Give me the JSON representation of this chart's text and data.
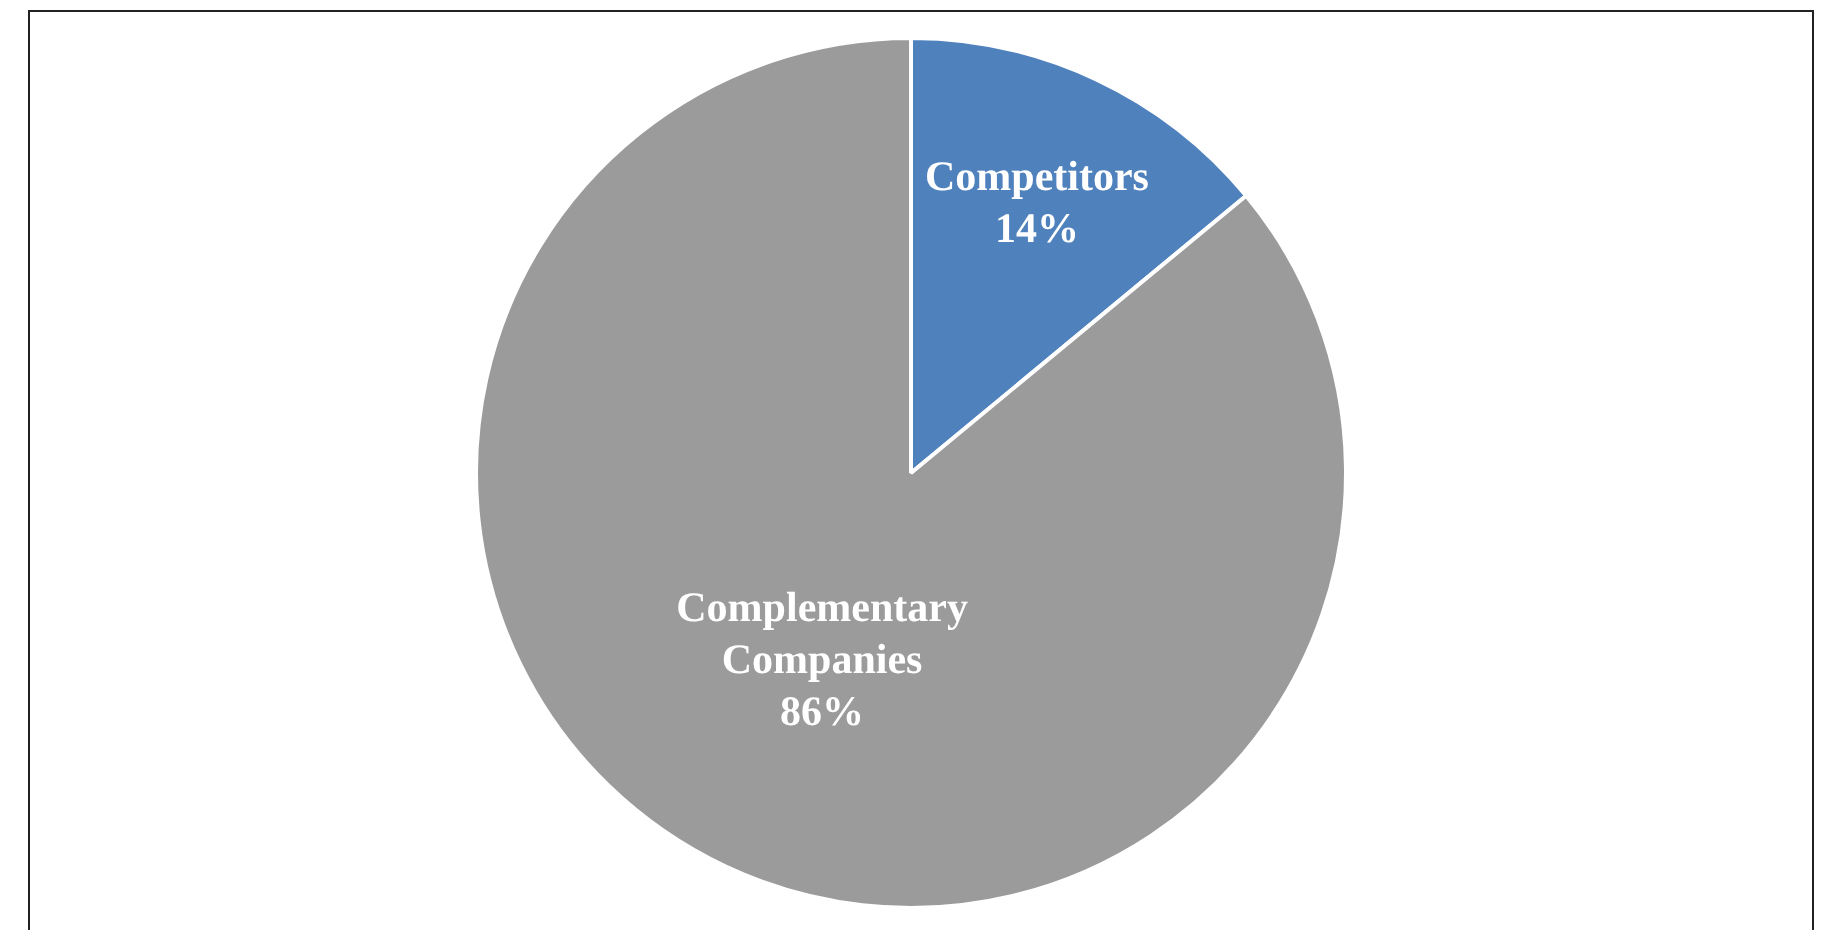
{
  "chart_data": {
    "type": "pie",
    "categories": [
      "Competitors",
      "Complementary Companies"
    ],
    "values": [
      14,
      86
    ],
    "colors": [
      "#4f81bd",
      "#9b9b9b"
    ],
    "value_labels": [
      "14%",
      "86%"
    ],
    "legend": false
  }
}
